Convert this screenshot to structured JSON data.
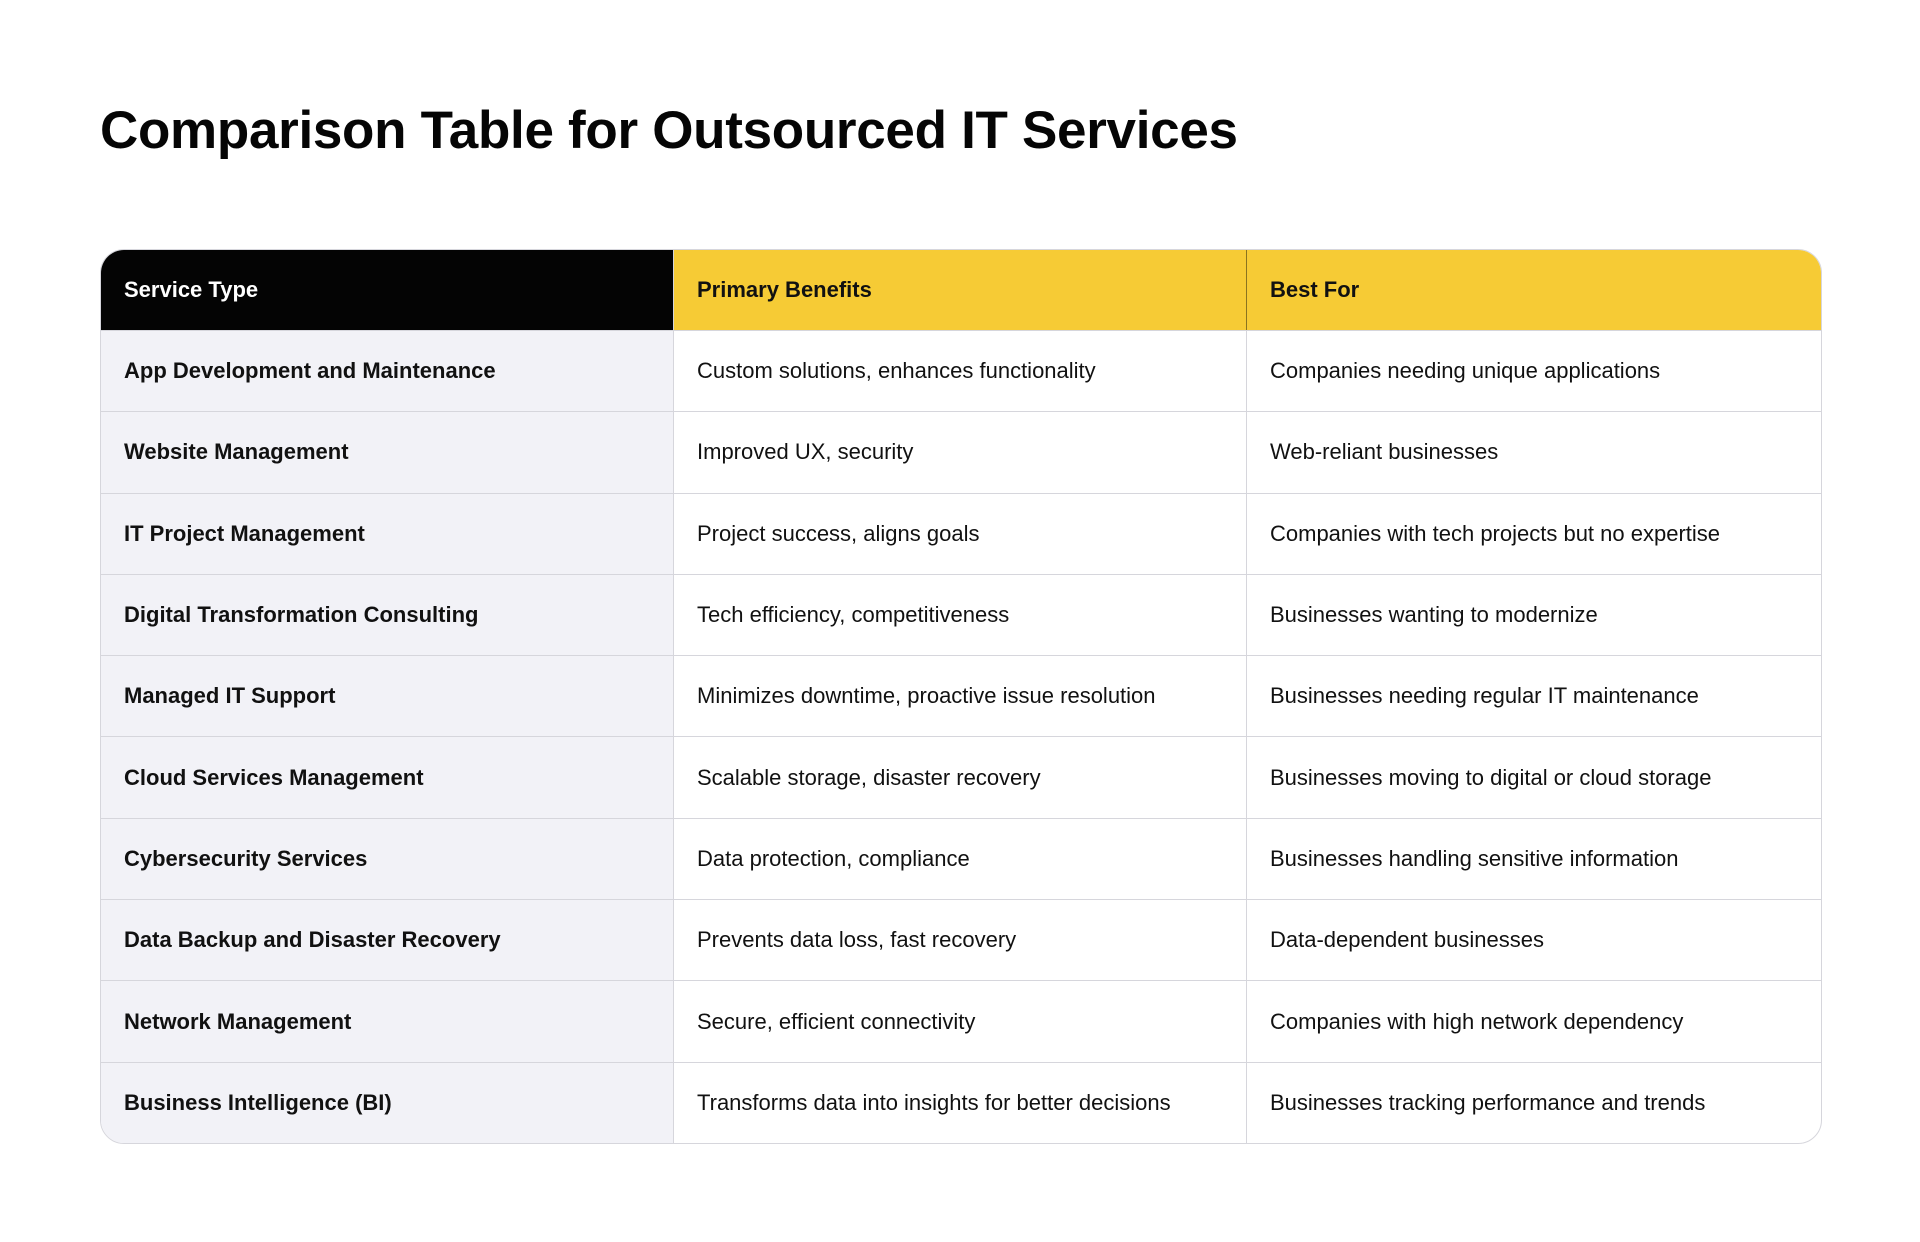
{
  "title": "Comparison Table for Outsourced IT Services",
  "colors": {
    "header_dark": "#040404",
    "header_accent": "#f6cb35",
    "first_col_bg": "#f2f2f7"
  },
  "headers": [
    "Service Type",
    "Primary Benefits",
    "Best For"
  ],
  "rows": [
    [
      "App Development and Maintenance",
      "Custom solutions, enhances functionality",
      "Companies needing unique applications"
    ],
    [
      "Website Management",
      "Improved UX, security",
      "Web-reliant businesses"
    ],
    [
      "IT Project Management",
      "Project success, aligns goals",
      "Companies with tech projects but no expertise"
    ],
    [
      "Digital Transformation Consulting",
      "Tech efficiency, competitiveness",
      "Businesses wanting to modernize"
    ],
    [
      "Managed IT Support",
      "Minimizes downtime, proactive issue resolution",
      "Businesses needing regular IT maintenance"
    ],
    [
      "Cloud Services Management",
      "Scalable storage, disaster recovery",
      "Businesses moving to digital or cloud storage"
    ],
    [
      "Cybersecurity Services",
      "Data protection, compliance",
      "Businesses handling sensitive information"
    ],
    [
      "Data Backup and Disaster Recovery",
      "Prevents data loss, fast recovery",
      "Data-dependent businesses"
    ],
    [
      "Network Management",
      "Secure, efficient connectivity",
      "Companies with high network dependency"
    ],
    [
      "Business Intelligence (BI)",
      "Transforms data into insights for better decisions",
      "Businesses tracking performance and trends"
    ]
  ]
}
